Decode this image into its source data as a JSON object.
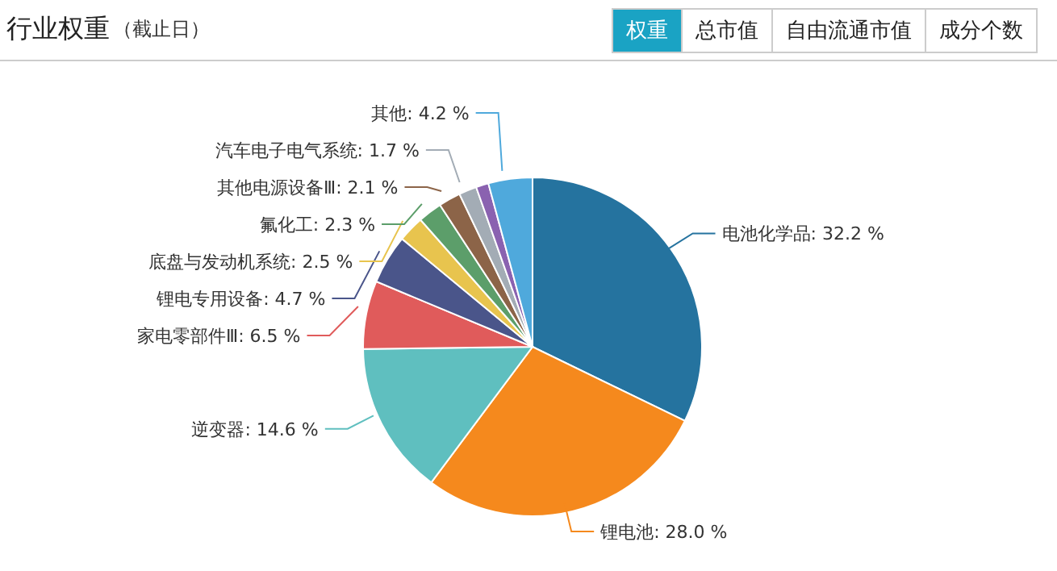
{
  "chart_data": {
    "type": "pie",
    "title": "行业权重",
    "subtitle": "（截止日）",
    "annotations": [
      "权重",
      "总市值",
      "自由流通市值",
      "成分个数"
    ],
    "categories": [
      "电池化学品",
      "锂电池",
      "逆变器",
      "家电零部件Ⅲ",
      "锂电专用设备",
      "底盘与发动机系统",
      "氟化工",
      "其他电源设备Ⅲ",
      "汽车电子电气系统",
      null,
      "其他"
    ],
    "values": [
      32.2,
      28.0,
      14.6,
      6.5,
      4.7,
      2.5,
      2.3,
      2.1,
      1.7,
      1.2,
      4.2
    ],
    "value_labels": [
      "32.2 %",
      "28.0 %",
      "14.6 %",
      "6.5 %",
      "4.7 %",
      "2.5 %",
      "2.3 %",
      "2.1 %",
      "1.7 %",
      null,
      "4.2 %"
    ],
    "colors": [
      "#25739f",
      "#f5891d",
      "#5fbfbf",
      "#e05b5b",
      "#4a558a",
      "#e8c44e",
      "#5c9e6a",
      "#8c6448",
      "#a3acb5",
      "#8a62b0",
      "#4fa9dc"
    ],
    "legend": false
  }
}
